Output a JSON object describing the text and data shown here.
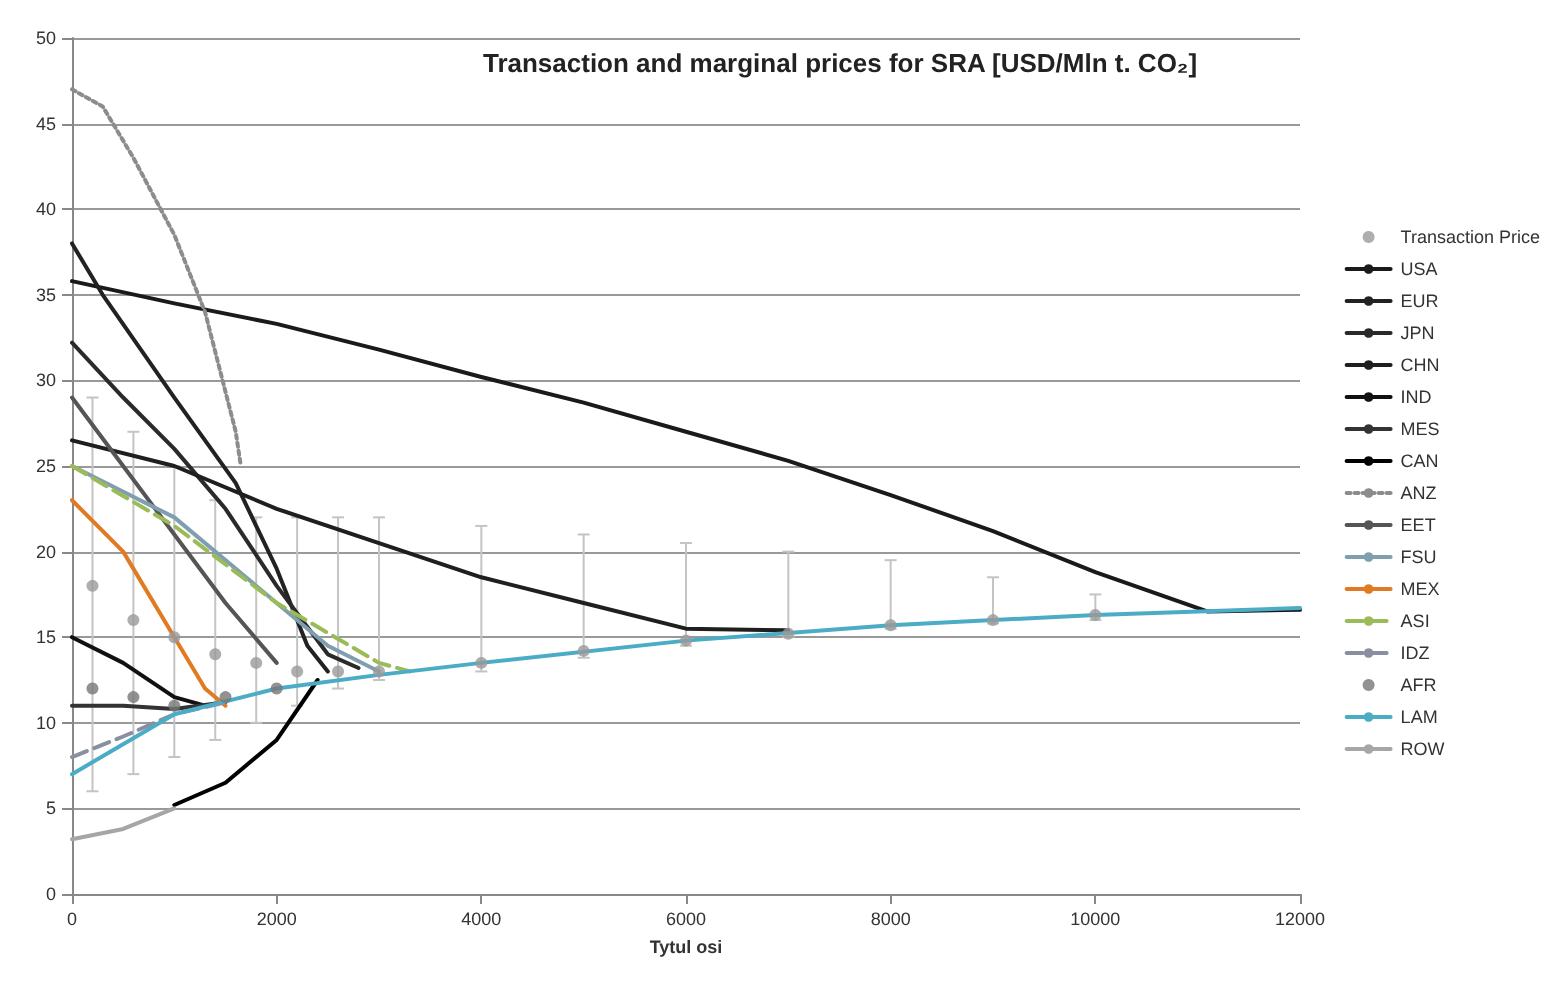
{
  "chart_data": {
    "type": "line",
    "title": "Transaction and marginal prices for SRA [USD/Mln t. CO₂]",
    "xlabel": "Tytul osi",
    "xlim": [
      0,
      12000
    ],
    "xticks": [
      0,
      2000,
      4000,
      6000,
      8000,
      10000,
      12000
    ],
    "ylim": [
      0,
      50
    ],
    "yticks": [
      0,
      5,
      10,
      15,
      20,
      25,
      30,
      35,
      40,
      45,
      50
    ],
    "grid": "y",
    "legend": "right",
    "marker": "none",
    "line_style": "solid",
    "series": [
      {
        "name": "Transaction Price",
        "type": "scatter",
        "marker": "circle",
        "color": "#9a9a9a",
        "x": [
          200,
          600,
          1000,
          1400,
          1800,
          2200,
          2600,
          3000,
          4000,
          5000,
          6000,
          7000,
          8000,
          9000,
          10000
        ],
        "values": [
          18,
          16,
          15,
          14,
          13.5,
          13,
          13,
          13,
          13.5,
          14.2,
          14.8,
          15.2,
          15.7,
          16,
          16.3
        ],
        "errors": [
          [
            6,
            29
          ],
          [
            7,
            27
          ],
          [
            8,
            25
          ],
          [
            9,
            23
          ],
          [
            10,
            22
          ],
          [
            11,
            22
          ],
          [
            12,
            22
          ],
          [
            12.5,
            22
          ],
          [
            13,
            21.5
          ],
          [
            13.8,
            21
          ],
          [
            14.5,
            20.5
          ],
          [
            15,
            20
          ],
          [
            15.5,
            19.5
          ],
          [
            15.8,
            18.5
          ],
          [
            16,
            17.5
          ]
        ]
      },
      {
        "name": "USA",
        "color": "#1a1a1a",
        "x": [
          0,
          1000,
          2000,
          3000,
          4000,
          5000,
          6000,
          7000,
          8000,
          9000,
          10000,
          11100,
          12000
        ],
        "values": [
          35.8,
          34.5,
          33.3,
          31.8,
          30.2,
          28.7,
          27,
          25.3,
          23.3,
          21.2,
          18.8,
          16.5,
          16.6
        ]
      },
      {
        "name": "EUR",
        "color": "#222222",
        "x": [
          0,
          300,
          1000,
          1600,
          2000,
          2300,
          2500
        ],
        "values": [
          38,
          35,
          29,
          24,
          19,
          14.5,
          13
        ]
      },
      {
        "name": "JPN",
        "color": "#2a2a2a",
        "x": [
          0,
          500,
          1000,
          1500,
          2000,
          2500,
          2800
        ],
        "values": [
          32.2,
          29,
          26,
          22.5,
          18,
          14,
          13.2
        ]
      },
      {
        "name": "CHN",
        "color": "#1f1f1f",
        "x": [
          0,
          1000,
          2000,
          3000,
          4000,
          5000,
          6000,
          7000
        ],
        "values": [
          26.5,
          25,
          22.5,
          20.5,
          18.5,
          17,
          15.5,
          15.4
        ]
      },
      {
        "name": "IND",
        "color": "#111111",
        "x": [
          0,
          500,
          1000,
          1300
        ],
        "values": [
          15,
          13.5,
          11.5,
          11
        ]
      },
      {
        "name": "MES",
        "color": "#333333",
        "x": [
          0,
          500,
          1000,
          1500
        ],
        "values": [
          11,
          11,
          10.8,
          11.2
        ]
      },
      {
        "name": "CAN",
        "color": "#000000",
        "x": [
          1000,
          1500,
          2000,
          2400
        ],
        "values": [
          5.2,
          6.5,
          9,
          12.5
        ]
      },
      {
        "name": "ANZ",
        "color": "#8c8c8c",
        "line_style": "dotted",
        "x": [
          0,
          300,
          600,
          1000,
          1300,
          1600,
          1650
        ],
        "values": [
          47,
          46,
          43,
          38.5,
          34,
          27,
          25
        ]
      },
      {
        "name": "EET",
        "color": "#555555",
        "x": [
          0,
          500,
          1000,
          1500,
          2000
        ],
        "values": [
          29,
          25,
          21,
          17,
          13.5
        ]
      },
      {
        "name": "FSU",
        "color": "#7f9fb0",
        "x": [
          0,
          1000,
          2000,
          2500,
          3000
        ],
        "values": [
          25,
          22,
          17,
          14.5,
          13
        ]
      },
      {
        "name": "MEX",
        "color": "#e07b24",
        "x": [
          0,
          500,
          1000,
          1300,
          1500
        ],
        "values": [
          23,
          20,
          15,
          12,
          11
        ]
      },
      {
        "name": "ASI",
        "color": "#9bbb59",
        "line_style": "dashed",
        "x": [
          0,
          1000,
          2000,
          3000,
          3300
        ],
        "values": [
          25,
          21.5,
          17,
          13.5,
          13
        ]
      },
      {
        "name": "IDZ",
        "color": "#8a8fa0",
        "line_style": "dashed",
        "x": [
          0,
          500,
          1000,
          1500
        ],
        "values": [
          8,
          9.2,
          10.5,
          11.2
        ]
      },
      {
        "name": "AFR",
        "type": "scatter",
        "marker": "circle",
        "color": "#777777",
        "x": [
          200,
          600,
          1000,
          1500,
          2000
        ],
        "values": [
          12,
          11.5,
          11,
          11.5,
          12
        ]
      },
      {
        "name": "LAM",
        "color": "#4bacc6",
        "x": [
          0,
          1000,
          2000,
          3000,
          4000,
          6000,
          8000,
          10000,
          12000
        ],
        "values": [
          7,
          10.5,
          12,
          12.8,
          13.5,
          14.8,
          15.7,
          16.3,
          16.7
        ]
      },
      {
        "name": "ROW",
        "color": "#a6a6a6",
        "x": [
          0,
          500,
          1000
        ],
        "values": [
          3.2,
          3.8,
          5
        ]
      }
    ]
  }
}
